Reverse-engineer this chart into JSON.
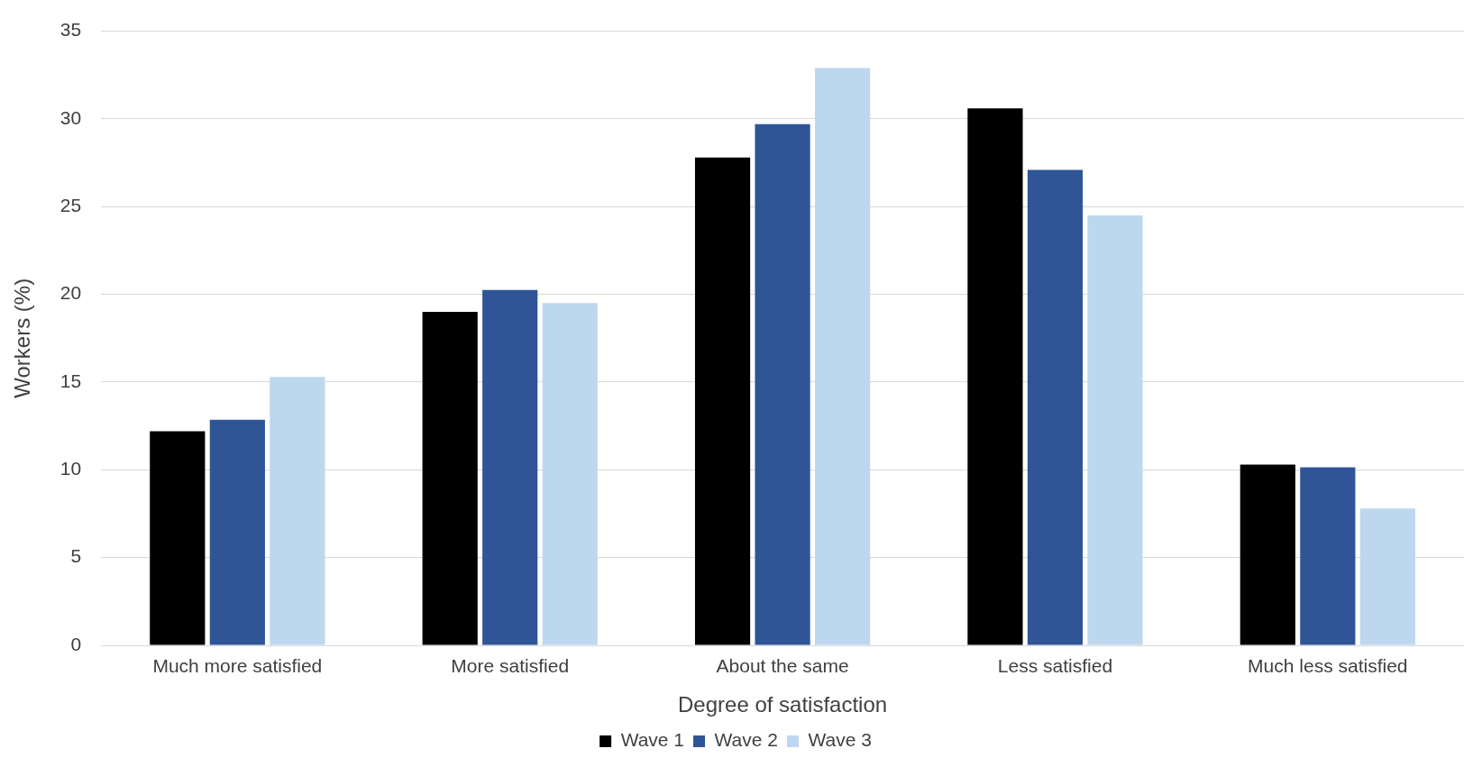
{
  "chart_data": {
    "type": "bar",
    "xlabel": "Degree of satisfaction",
    "ylabel": "Workers (%)",
    "categories": [
      "Much more satisfied",
      "More satisfied",
      "About the same",
      "Less satisfied",
      "Much less satisfied"
    ],
    "series": [
      {
        "name": "Wave 1",
        "color": "#000000",
        "values": [
          12.2,
          19.0,
          27.8,
          30.6,
          10.3
        ]
      },
      {
        "name": "Wave 2",
        "color": "#2f5597",
        "values": [
          12.85,
          20.25,
          29.7,
          27.1,
          10.15
        ]
      },
      {
        "name": "Wave 3",
        "color": "#bdd7ee",
        "values": [
          15.3,
          19.5,
          32.9,
          24.5,
          7.8
        ]
      }
    ],
    "ylim": [
      0,
      35
    ],
    "yticks": [
      0,
      5,
      10,
      15,
      20,
      25,
      30,
      35
    ],
    "grid": "y",
    "legend": "bottom"
  }
}
